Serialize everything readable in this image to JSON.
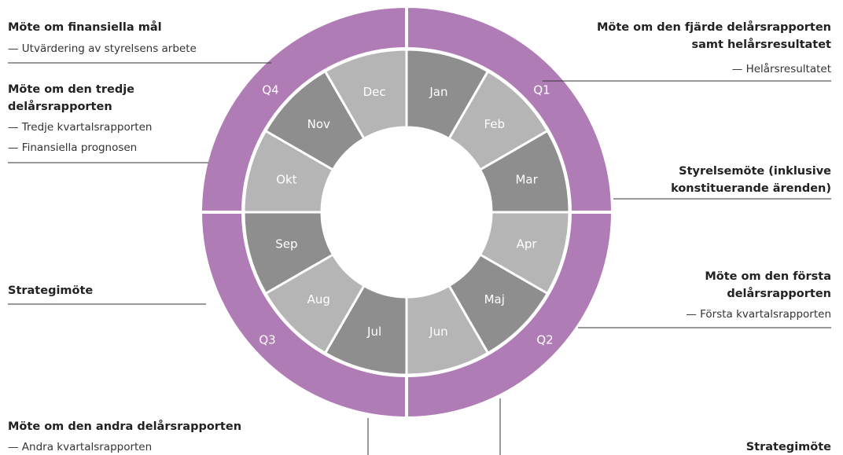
{
  "quarters": [
    "Q1",
    "Q2",
    "Q3",
    "Q4"
  ],
  "months": [
    "Jan",
    "Feb",
    "Mar",
    "Apr",
    "Maj",
    "Jun",
    "Jul",
    "Aug",
    "Sep",
    "Okt",
    "Nov",
    "Dec"
  ],
  "annotations": [
    {
      "title": [
        "Möte om finansiella mål"
      ],
      "bullets": [
        "— Utvärdering av styrelsens arbete"
      ]
    },
    {
      "title": [
        "Möte om den tredje",
        "delårsrapporten"
      ],
      "bullets": [
        "— Tredje kvartalsrapporten",
        "— Finansiella prognosen"
      ]
    },
    {
      "title": [
        "Möte om den fjärde delårsrapporten",
        "samt helårsresultatet"
      ],
      "bullets": [
        "— Helårsresultatet"
      ]
    },
    {
      "title": [
        "Styrelsemöte (inklusive",
        "konstituerande ärenden)"
      ],
      "bullets": []
    },
    {
      "title": [
        "Möte om den första",
        "delårsrapporten"
      ],
      "bullets": [
        "— Första kvartalsrapporten"
      ]
    },
    {
      "title": [
        "Strategimöte"
      ],
      "bullets": []
    },
    {
      "title": [
        "Möte om den andra delårsrapporten"
      ],
      "bullets": [
        "— Andra kvartalsrapporten"
      ]
    },
    {
      "title": [
        "Strategimöte"
      ],
      "bullets": []
    }
  ]
}
